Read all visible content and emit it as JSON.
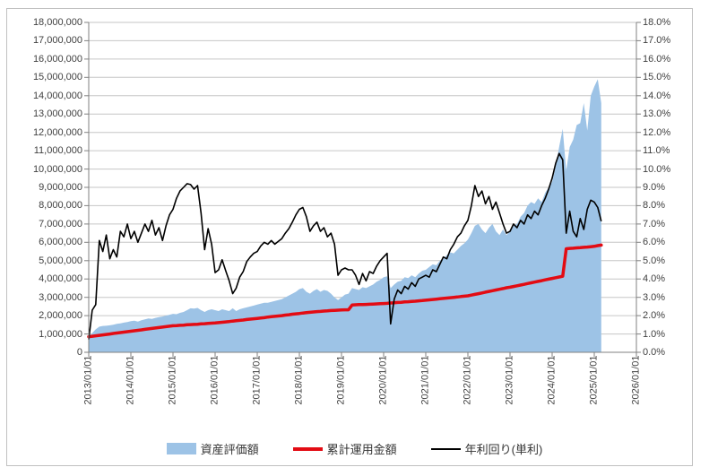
{
  "chart_data": {
    "type": "combo",
    "title": "",
    "grid": "horizontal",
    "legend_position": "bottom",
    "x_unit": "month",
    "x_start": "2013/01",
    "x_end": "2025/03",
    "months_span": 156,
    "x_tick_labels": [
      "2013/01/01",
      "2014/01/01",
      "2015/01/01",
      "2016/01/01",
      "2017/01/01",
      "2018/01/01",
      "2019/01/01",
      "2020/01/01",
      "2021/01/01",
      "2022/01/01",
      "2023/01/01",
      "2024/01/01",
      "2025/01/01",
      "2026/01/01"
    ],
    "left_axis": {
      "min": 0,
      "max": 18000000,
      "step": 1000000,
      "tick_labels": [
        "0",
        "1,000,000",
        "2,000,000",
        "3,000,000",
        "4,000,000",
        "5,000,000",
        "6,000,000",
        "7,000,000",
        "8,000,000",
        "9,000,000",
        "10,000,000",
        "11,000,000",
        "12,000,000",
        "13,000,000",
        "14,000,000",
        "15,000,000",
        "16,000,000",
        "17,000,000",
        "18,000,000"
      ]
    },
    "right_axis": {
      "min": 0,
      "max": 18,
      "step": 1,
      "tick_labels": [
        "0.0%",
        "1.0%",
        "2.0%",
        "3.0%",
        "4.0%",
        "5.0%",
        "6.0%",
        "7.0%",
        "8.0%",
        "9.0%",
        "10.0%",
        "11.0%",
        "12.0%",
        "13.0%",
        "14.0%",
        "15.0%",
        "16.0%",
        "17.0%",
        "18.0%"
      ]
    },
    "series": [
      {
        "name": "資産評価額",
        "type": "area",
        "axis": "left",
        "color": "#9DC3E6",
        "values": [
          800000,
          1050000,
          1250000,
          1400000,
          1440000,
          1450000,
          1470000,
          1500000,
          1550000,
          1580000,
          1620000,
          1650000,
          1700000,
          1720000,
          1680000,
          1750000,
          1800000,
          1850000,
          1820000,
          1880000,
          1920000,
          1950000,
          2000000,
          2050000,
          2100000,
          2080000,
          2150000,
          2200000,
          2300000,
          2400000,
          2380000,
          2420000,
          2300000,
          2200000,
          2300000,
          2350000,
          2300000,
          2250000,
          2350000,
          2300000,
          2250000,
          2400000,
          2250000,
          2350000,
          2400000,
          2450000,
          2500000,
          2550000,
          2600000,
          2650000,
          2700000,
          2700000,
          2750000,
          2800000,
          2850000,
          2900000,
          3000000,
          3100000,
          3200000,
          3300000,
          3450000,
          3500000,
          3300000,
          3200000,
          3350000,
          3450000,
          3300000,
          3400000,
          3350000,
          3200000,
          3000000,
          2850000,
          3000000,
          3150000,
          3200000,
          3500000,
          3450000,
          3400000,
          3550000,
          3500000,
          3600000,
          3700000,
          3850000,
          3950000,
          4100000,
          4150000,
          3500000,
          3700000,
          3850000,
          3900000,
          4100000,
          4050000,
          4200000,
          4100000,
          4300000,
          4450000,
          4500000,
          4650000,
          4800000,
          4750000,
          5000000,
          5100000,
          5300000,
          5450000,
          5400000,
          5600000,
          5800000,
          5950000,
          6150000,
          6500000,
          6900000,
          7000000,
          6700000,
          6500000,
          6800000,
          7000000,
          6600000,
          6400000,
          6700000,
          6400000,
          6600000,
          6900000,
          7000000,
          7400000,
          7600000,
          8000000,
          8200000,
          8100000,
          8400000,
          8200000,
          8700000,
          9000000,
          9300000,
          10100000,
          11200000,
          12200000,
          9900000,
          11200000,
          11600000,
          12400000,
          12500000,
          13600000,
          12100000,
          14000000,
          14500000,
          14900000,
          13600000
        ]
      },
      {
        "name": "累計運用金額",
        "type": "line",
        "axis": "left",
        "color": "#E30B13",
        "stroke_width": 3.5,
        "values": [
          850000,
          875000,
          900000,
          925000,
          950000,
          975000,
          1000000,
          1025000,
          1050000,
          1075000,
          1100000,
          1125000,
          1150000,
          1175000,
          1200000,
          1225000,
          1250000,
          1275000,
          1300000,
          1325000,
          1350000,
          1375000,
          1400000,
          1425000,
          1450000,
          1460000,
          1470000,
          1480000,
          1500000,
          1510000,
          1520000,
          1530000,
          1550000,
          1560000,
          1580000,
          1590000,
          1600000,
          1620000,
          1640000,
          1660000,
          1680000,
          1700000,
          1720000,
          1740000,
          1760000,
          1790000,
          1810000,
          1830000,
          1850000,
          1870000,
          1890000,
          1920000,
          1940000,
          1960000,
          1980000,
          2000000,
          2030000,
          2050000,
          2080000,
          2100000,
          2120000,
          2140000,
          2160000,
          2180000,
          2200000,
          2220000,
          2230000,
          2250000,
          2260000,
          2280000,
          2290000,
          2300000,
          2310000,
          2320000,
          2320000,
          2580000,
          2590000,
          2600000,
          2600000,
          2610000,
          2620000,
          2630000,
          2640000,
          2650000,
          2660000,
          2670000,
          2690000,
          2700000,
          2720000,
          2730000,
          2750000,
          2760000,
          2780000,
          2790000,
          2810000,
          2820000,
          2840000,
          2860000,
          2880000,
          2900000,
          2920000,
          2940000,
          2960000,
          2980000,
          3000000,
          3020000,
          3040000,
          3060000,
          3080000,
          3120000,
          3160000,
          3200000,
          3240000,
          3280000,
          3320000,
          3360000,
          3400000,
          3440000,
          3480000,
          3520000,
          3550000,
          3590000,
          3630000,
          3670000,
          3710000,
          3750000,
          3790000,
          3830000,
          3870000,
          3910000,
          3950000,
          3990000,
          4030000,
          4070000,
          4110000,
          4150000,
          5650000,
          5670000,
          5680000,
          5700000,
          5710000,
          5730000,
          5740000,
          5760000,
          5780000,
          5820000,
          5850000
        ]
      },
      {
        "name": "年利回り(単利)",
        "type": "line",
        "axis": "right",
        "color": "#000000",
        "stroke_width": 1.6,
        "values": [
          0.7,
          2.3,
          2.6,
          6.1,
          5.5,
          6.4,
          5.1,
          5.6,
          5.2,
          6.6,
          6.3,
          7.0,
          6.2,
          6.6,
          6.0,
          6.5,
          7.0,
          6.6,
          7.2,
          6.4,
          6.8,
          6.1,
          6.9,
          7.5,
          7.8,
          8.4,
          8.8,
          9.0,
          9.2,
          9.15,
          8.9,
          9.1,
          7.6,
          5.6,
          6.75,
          5.9,
          4.35,
          4.5,
          5.05,
          4.45,
          3.9,
          3.2,
          3.5,
          4.1,
          4.4,
          4.95,
          5.2,
          5.4,
          5.5,
          5.8,
          6.0,
          5.9,
          6.1,
          5.9,
          6.05,
          6.2,
          6.5,
          6.75,
          7.1,
          7.5,
          7.8,
          7.9,
          7.4,
          6.6,
          6.9,
          7.1,
          6.6,
          6.8,
          6.3,
          6.5,
          5.9,
          4.2,
          4.5,
          4.6,
          4.5,
          4.5,
          4.2,
          3.7,
          4.3,
          3.9,
          4.4,
          4.3,
          4.7,
          5.0,
          5.2,
          5.4,
          1.55,
          2.9,
          3.4,
          3.2,
          3.6,
          3.45,
          3.8,
          3.6,
          4.0,
          4.1,
          4.2,
          4.1,
          4.5,
          4.4,
          4.8,
          5.2,
          5.1,
          5.6,
          5.9,
          6.3,
          6.5,
          6.9,
          7.2,
          8.0,
          9.1,
          8.5,
          8.8,
          8.1,
          8.5,
          7.8,
          8.2,
          7.6,
          7.0,
          6.5,
          6.6,
          7.0,
          6.8,
          7.2,
          7.0,
          7.5,
          7.3,
          7.7,
          7.5,
          8.0,
          8.4,
          8.9,
          9.5,
          10.3,
          10.85,
          10.5,
          6.5,
          7.7,
          6.6,
          6.3,
          7.3,
          6.7,
          7.8,
          8.3,
          8.2,
          7.9,
          7.15
        ]
      }
    ],
    "colors": {
      "grid": "#C6C6C6",
      "axis": "#808080",
      "tick_text": "#3F3F3F",
      "frame_border": "#C0C0C0"
    }
  }
}
